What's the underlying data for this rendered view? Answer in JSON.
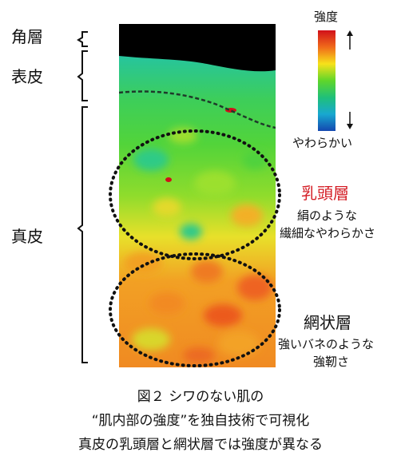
{
  "layers": {
    "stratum_corneum": "角層",
    "epidermis": "表皮",
    "dermis": "真皮"
  },
  "legend": {
    "title": "強度",
    "bottom_label": "やわらかい",
    "colors": [
      "#d1101a",
      "#f06a1a",
      "#f7e21a",
      "#5fd62a",
      "#1fc07a",
      "#18a8d0",
      "#1448b0"
    ]
  },
  "papillary": {
    "title": "乳頭層",
    "desc_line1": "絹のような",
    "desc_line2": "繊細なやわらかさ"
  },
  "reticular": {
    "title": "網状層",
    "desc_line1": "強いバネのような",
    "desc_line2": "強靭さ"
  },
  "caption": {
    "line1": "図２ シワのない肌の",
    "line2": "“肌内部の強度”を独自技術で可視化",
    "line3": "真皮の乳頭層と網状層では強度が異なる"
  }
}
